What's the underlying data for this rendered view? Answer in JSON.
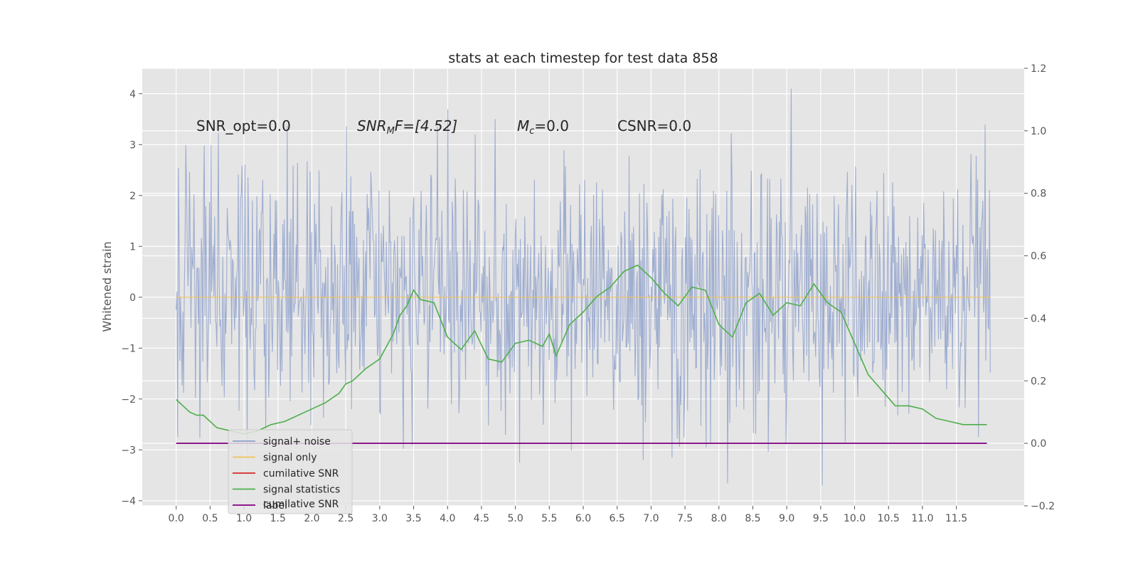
{
  "chart_data": {
    "type": "line",
    "title": "stats at each timestep for test data 858",
    "ylabel": "Whitened strain",
    "xlabel": "",
    "xlim": [
      -0.5,
      12.5
    ],
    "ylim": [
      -4.1,
      4.5
    ],
    "y2lim": [
      -0.2,
      1.2
    ],
    "grid": true,
    "legend_position": "lower-left",
    "x_ticks": [
      "0.0",
      "0.5",
      "1.0",
      "1.5",
      "2.0",
      "2.5",
      "3.0",
      "3.5",
      "4.0",
      "4.5",
      "5.0",
      "5.5",
      "6.0",
      "6.5",
      "7.0",
      "7.5",
      "8.0",
      "8.5",
      "9.0",
      "9.5",
      "10.0",
      "10.5",
      "11.0",
      "11.5"
    ],
    "y_ticks": [
      "4",
      "3",
      "2",
      "1",
      "0",
      "−1",
      "−2",
      "−3",
      "−4"
    ],
    "y2_ticks": [
      "1.2",
      "1.0",
      "0.8",
      "0.6",
      "0.4",
      "0.2",
      "0.0",
      "−0.2"
    ],
    "annotations": {
      "snr_opt": "SNR_opt=0.0",
      "snr_mf_main": "SNR",
      "snr_mf_sub": "M",
      "snr_mf_tail": "F=[4.52]",
      "mc_main": "M",
      "mc_sub": "c",
      "mc_tail": "=0.0",
      "csnr": "CSNR=0.0"
    },
    "legend": [
      {
        "label": "signal+ noise",
        "color": "#8da0cb"
      },
      {
        "label": "signal only",
        "color": "#f0c05a"
      },
      {
        "label": "cumilative SNR",
        "color": "#d62728"
      },
      {
        "label": "signal statistics",
        "color": "#4daf4a"
      },
      {
        "label": "label",
        "color": "#800080"
      }
    ],
    "legend_overlap_text": "cumilative SNR",
    "noise_series": {
      "name": "signal+ noise",
      "x_start": 0.0,
      "x_end": 12.0,
      "amplitude_range": [
        -3.7,
        4.1
      ]
    },
    "signal_only": {
      "name": "signal only",
      "x": [
        0.0,
        12.0
      ],
      "y": [
        0.0,
        0.0
      ]
    },
    "label_line": {
      "name": "label",
      "x": [
        0.0,
        11.95
      ],
      "y2": [
        0.0,
        0.0
      ]
    },
    "statistics_series": {
      "name": "signal statistics",
      "x": [
        0.0,
        0.1,
        0.2,
        0.3,
        0.4,
        0.5,
        0.6,
        0.8,
        1.0,
        1.2,
        1.4,
        1.6,
        1.8,
        2.0,
        2.2,
        2.4,
        2.5,
        2.6,
        2.8,
        3.0,
        3.2,
        3.3,
        3.4,
        3.5,
        3.6,
        3.8,
        4.0,
        4.2,
        4.4,
        4.6,
        4.8,
        5.0,
        5.2,
        5.4,
        5.5,
        5.6,
        5.8,
        6.0,
        6.2,
        6.4,
        6.6,
        6.8,
        7.0,
        7.2,
        7.4,
        7.6,
        7.8,
        8.0,
        8.2,
        8.4,
        8.6,
        8.8,
        9.0,
        9.2,
        9.4,
        9.6,
        9.8,
        10.0,
        10.2,
        10.4,
        10.6,
        10.8,
        11.0,
        11.2,
        11.4,
        11.6,
        11.8,
        11.95
      ],
      "y2": [
        0.14,
        0.12,
        0.1,
        0.09,
        0.09,
        0.07,
        0.05,
        0.04,
        0.03,
        0.04,
        0.06,
        0.07,
        0.09,
        0.11,
        0.13,
        0.16,
        0.19,
        0.2,
        0.24,
        0.27,
        0.35,
        0.41,
        0.44,
        0.49,
        0.46,
        0.45,
        0.34,
        0.3,
        0.36,
        0.27,
        0.26,
        0.32,
        0.33,
        0.31,
        0.35,
        0.28,
        0.38,
        0.42,
        0.47,
        0.5,
        0.55,
        0.57,
        0.53,
        0.48,
        0.44,
        0.5,
        0.49,
        0.38,
        0.34,
        0.45,
        0.48,
        0.41,
        0.45,
        0.44,
        0.51,
        0.45,
        0.42,
        0.32,
        0.22,
        0.17,
        0.12,
        0.12,
        0.11,
        0.08,
        0.07,
        0.06,
        0.06,
        0.06
      ]
    }
  }
}
